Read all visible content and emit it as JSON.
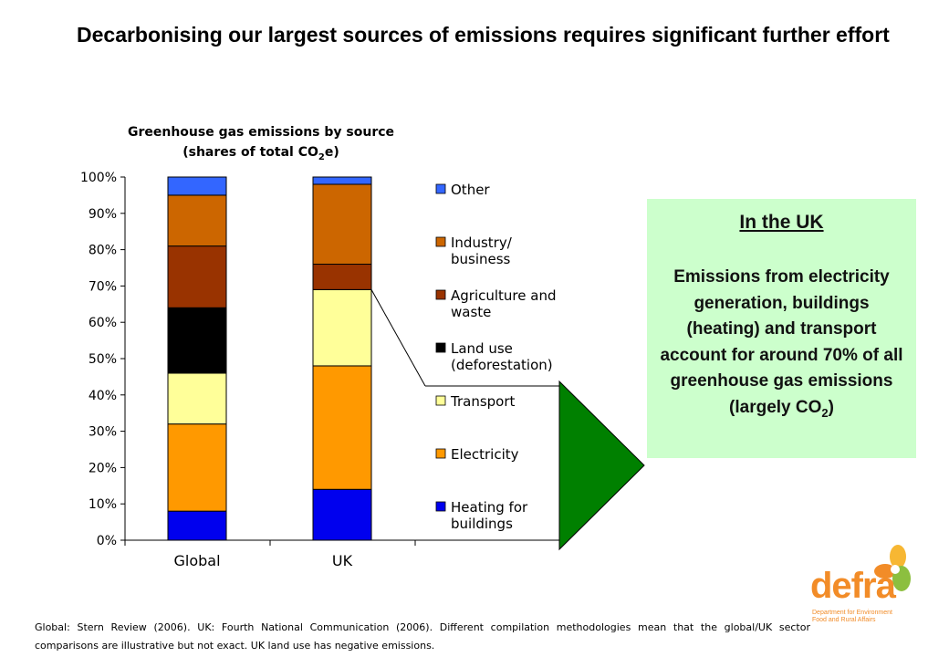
{
  "slide": {
    "title": "Decarbonising our largest sources of emissions requires significant further effort"
  },
  "chart_title": {
    "line1": "Greenhouse gas emissions by source",
    "line2_prefix": "(shares of total CO",
    "line2_sub": "2",
    "line2_suffix": "e)"
  },
  "chart_data": {
    "type": "bar",
    "stacked": true,
    "categories": [
      "Global",
      "UK"
    ],
    "y_ticks": [
      "0%",
      "10%",
      "20%",
      "30%",
      "40%",
      "50%",
      "60%",
      "70%",
      "80%",
      "90%",
      "100%"
    ],
    "ylim": [
      0,
      100
    ],
    "legend_position": "right",
    "series": [
      {
        "name": "Heating for buildings",
        "legend_lines": [
          "Heating for",
          "buildings"
        ],
        "color": "#0000ee",
        "values": [
          8,
          14
        ]
      },
      {
        "name": "Electricity",
        "legend_lines": [
          "Electricity"
        ],
        "color": "#ff9900",
        "values": [
          24,
          34
        ]
      },
      {
        "name": "Transport",
        "legend_lines": [
          "Transport"
        ],
        "color": "#ffff99",
        "values": [
          14,
          21
        ]
      },
      {
        "name": "Land use (deforestation)",
        "legend_lines": [
          "Land use",
          "(deforestation)"
        ],
        "color": "#000000",
        "values": [
          18,
          0
        ]
      },
      {
        "name": "Agriculture and waste",
        "legend_lines": [
          "Agriculture and",
          "waste"
        ],
        "color": "#993300",
        "values": [
          17,
          7
        ]
      },
      {
        "name": "Industry/ business",
        "legend_lines": [
          "Industry/",
          "business"
        ],
        "color": "#cc6600",
        "values": [
          14,
          22
        ]
      },
      {
        "name": "Other",
        "legend_lines": [
          "Other"
        ],
        "color": "#3366ff",
        "values": [
          5,
          2
        ]
      }
    ]
  },
  "callout": {
    "heading": "In the UK",
    "body_prefix": "Emissions from electricity generation, buildings (heating) and transport account for around 70% of all greenhouse gas emissions (largely CO",
    "body_sub": "2",
    "body_suffix": ")",
    "background": "#ccffcc",
    "arrow_color": "#008000"
  },
  "footnote": "Global: Stern Review (2006). UK: Fourth National Communication (2006). Different compilation methodologies mean that the global/UK sector comparisons are illustrative but not exact. UK land use has negative emissions.",
  "logo": {
    "word": "defra",
    "subtitle_line1": "Department for Environment",
    "subtitle_line2": "Food and Rural Affairs"
  }
}
